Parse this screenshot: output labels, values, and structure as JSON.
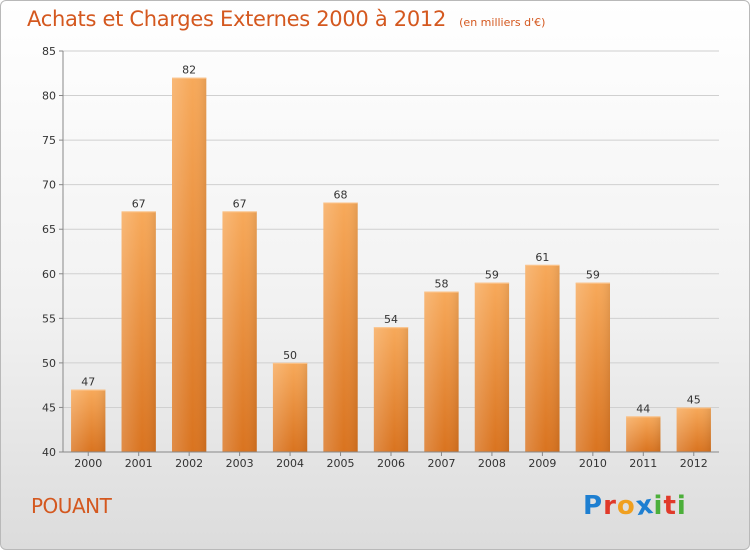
{
  "header": {
    "title": "Achats et Charges Externes 2000 à 2012",
    "subtitle": "(en milliers d'€)"
  },
  "commune": "POUANT",
  "logo": {
    "text": "Proxiti",
    "letters": [
      "P",
      "r",
      "o",
      "x",
      "i",
      "t",
      "i"
    ],
    "colors": [
      "#1e7fd1",
      "#e03a2a",
      "#f0a020",
      "#1e7fd1",
      "#4caf3a",
      "#e03a2a",
      "#4caf3a"
    ]
  },
  "colors": {
    "bar_top": "#f7a95a",
    "bar_bottom": "#d9731f",
    "grid": "#d0d0d0",
    "accent": "#d4581f"
  },
  "chart_data": {
    "type": "bar",
    "title": "Achats et Charges Externes 2000 à 2012",
    "subtitle": "(en milliers d'€)",
    "xlabel": "",
    "ylabel": "",
    "categories": [
      "2000",
      "2001",
      "2002",
      "2003",
      "2004",
      "2005",
      "2006",
      "2007",
      "2008",
      "2009",
      "2010",
      "2011",
      "2012"
    ],
    "values": [
      47,
      67,
      82,
      67,
      50,
      68,
      54,
      58,
      59,
      61,
      59,
      44,
      45
    ],
    "ylim": [
      40,
      85
    ],
    "yticks": [
      40,
      45,
      50,
      55,
      60,
      65,
      70,
      75,
      80,
      85
    ],
    "grid": true,
    "data_labels": true
  }
}
